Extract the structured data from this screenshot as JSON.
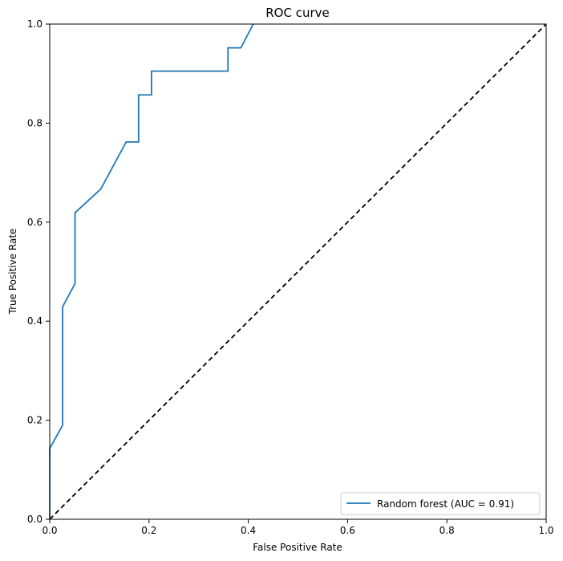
{
  "chart_data": {
    "type": "line",
    "title": "ROC curve",
    "xlabel": "False Positive Rate",
    "ylabel": "True Positive Rate",
    "xlim": [
      0,
      1
    ],
    "ylim": [
      0,
      1
    ],
    "x_ticks": [
      {
        "value": 0,
        "label": "0.0"
      },
      {
        "value": 0.2,
        "label": "0.2"
      },
      {
        "value": 0.4,
        "label": "0.4"
      },
      {
        "value": 0.6,
        "label": "0.6"
      },
      {
        "value": 0.8,
        "label": "0.8"
      },
      {
        "value": 1,
        "label": "1.0"
      }
    ],
    "y_ticks": [
      {
        "value": 0,
        "label": "0.0"
      },
      {
        "value": 0.2,
        "label": "0.2"
      },
      {
        "value": 0.4,
        "label": "0.4"
      },
      {
        "value": 0.6,
        "label": "0.6"
      },
      {
        "value": 0.8,
        "label": "0.8"
      },
      {
        "value": 1,
        "label": "1.0"
      }
    ],
    "grid": false,
    "legend_position": "bottom-right",
    "series": [
      {
        "name": "Random forest (AUC = 0.91)",
        "color": "#1f77b4",
        "style": "solid",
        "x": [
          0.0,
          0.0,
          0.026,
          0.026,
          0.051,
          0.051,
          0.103,
          0.154,
          0.179,
          0.179,
          0.205,
          0.205,
          0.359,
          0.359,
          0.385,
          0.41
        ],
        "y": [
          0.0,
          0.143,
          0.19,
          0.429,
          0.476,
          0.619,
          0.667,
          0.762,
          0.762,
          0.857,
          0.857,
          0.905,
          0.905,
          0.952,
          0.952,
          1.0
        ]
      }
    ],
    "reference_line": {
      "x": [
        0,
        1
      ],
      "y": [
        0,
        1
      ],
      "color": "#000000",
      "style": "dashed"
    }
  }
}
